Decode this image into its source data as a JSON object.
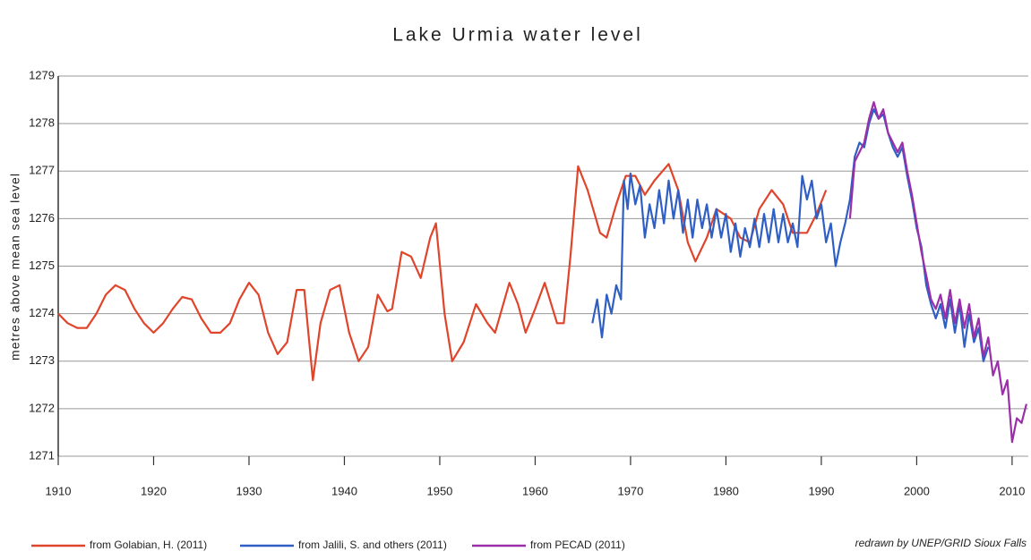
{
  "chart_data": {
    "type": "line",
    "title": "Lake Urmia water level",
    "y_label": "metres above mean sea level",
    "credit": "redrawn by UNEP/GRID Sioux Falls",
    "xlim": [
      1910,
      2011.7
    ],
    "xticks": [
      1910,
      1920,
      1930,
      1940,
      1950,
      1960,
      1970,
      1980,
      1990,
      2000,
      2010
    ],
    "ylim": [
      1271,
      1279
    ],
    "yticks": [
      1271,
      1272,
      1273,
      1274,
      1275,
      1276,
      1277,
      1278,
      1279
    ],
    "grid": true,
    "series": [
      {
        "name": "from Golabian, H. (2011)",
        "color": "#e0452b",
        "x": [
          1910,
          1911,
          1912,
          1913,
          1914,
          1915,
          1916,
          1917,
          1918,
          1919,
          1920,
          1921,
          1922,
          1923,
          1924,
          1925,
          1926,
          1927,
          1928,
          1929,
          1930,
          1931,
          1932,
          1933,
          1934,
          1935,
          1935.8,
          1936.7,
          1937.5,
          1938.5,
          1939.5,
          1940.5,
          1941.5,
          1942.5,
          1943.5,
          1944.5,
          1945,
          1946,
          1947,
          1948,
          1949,
          1949.6,
          1950.5,
          1951.3,
          1952.5,
          1953.8,
          1955,
          1955.8,
          1957.3,
          1958.2,
          1959,
          1960,
          1961,
          1962.3,
          1963,
          1963.7,
          1964.5,
          1965.5,
          1966.8,
          1967.5,
          1968.5,
          1969.5,
          1970.5,
          1971.5,
          1972.5,
          1974,
          1975,
          1976,
          1976.8,
          1978,
          1979,
          1980.5,
          1981.5,
          1982.5,
          1983.5,
          1984.8,
          1986,
          1987,
          1988.5,
          1989.5,
          1990.5
        ],
        "values": [
          1274.0,
          1273.8,
          1273.7,
          1273.7,
          1274.0,
          1274.4,
          1274.6,
          1274.5,
          1274.1,
          1273.8,
          1273.6,
          1273.8,
          1274.1,
          1274.35,
          1274.3,
          1273.9,
          1273.6,
          1273.6,
          1273.8,
          1274.3,
          1274.65,
          1274.4,
          1273.6,
          1273.15,
          1273.4,
          1274.5,
          1274.5,
          1272.6,
          1273.8,
          1274.5,
          1274.6,
          1273.6,
          1273.0,
          1273.3,
          1274.4,
          1274.05,
          1274.1,
          1275.3,
          1275.2,
          1274.75,
          1275.6,
          1275.9,
          1274.0,
          1273.0,
          1273.4,
          1274.2,
          1273.8,
          1273.6,
          1274.65,
          1274.2,
          1273.6,
          1274.1,
          1274.65,
          1273.8,
          1273.8,
          1275.2,
          1277.1,
          1276.6,
          1275.7,
          1275.6,
          1276.3,
          1276.9,
          1276.9,
          1276.5,
          1276.8,
          1277.15,
          1276.6,
          1275.5,
          1275.1,
          1275.6,
          1276.2,
          1276.0,
          1275.6,
          1275.5,
          1276.2,
          1276.6,
          1276.3,
          1275.7,
          1275.7,
          1276.1,
          1276.6
        ]
      },
      {
        "name": "from Jalili, S. and others (2011)",
        "color": "#2f5fc4",
        "x": [
          1966,
          1966.5,
          1967,
          1967.5,
          1968,
          1968.5,
          1969,
          1969.3,
          1969.7,
          1970,
          1970.5,
          1971,
          1971.5,
          1972,
          1972.5,
          1973,
          1973.5,
          1974,
          1974.5,
          1975,
          1975.5,
          1976,
          1976.5,
          1977,
          1977.5,
          1978,
          1978.5,
          1979,
          1979.5,
          1980,
          1980.5,
          1981,
          1981.5,
          1982,
          1982.5,
          1983,
          1983.5,
          1984,
          1984.5,
          1985,
          1985.5,
          1986,
          1986.5,
          1987,
          1987.5,
          1988,
          1988.5,
          1989,
          1989.5,
          1990,
          1990.5,
          1991,
          1991.5,
          1992,
          1992.5,
          1993,
          1993.5,
          1994,
          1994.5,
          1995,
          1995.5,
          1996,
          1996.5,
          1997,
          1997.5,
          1998,
          1998.5,
          1999,
          1999.5,
          2000,
          2000.5,
          2001,
          2001.5,
          2002,
          2002.5,
          2003,
          2003.5,
          2004,
          2004.5,
          2005,
          2005.5,
          2006,
          2006.5,
          2007,
          2007.5
        ],
        "values": [
          1273.8,
          1274.3,
          1273.5,
          1274.4,
          1274.0,
          1274.6,
          1274.3,
          1276.8,
          1276.2,
          1276.95,
          1276.3,
          1276.7,
          1275.6,
          1276.3,
          1275.8,
          1276.6,
          1275.9,
          1276.8,
          1276.0,
          1276.6,
          1275.7,
          1276.4,
          1275.6,
          1276.4,
          1275.8,
          1276.3,
          1275.6,
          1276.2,
          1275.6,
          1276.1,
          1275.3,
          1275.9,
          1275.2,
          1275.8,
          1275.4,
          1276.0,
          1275.4,
          1276.1,
          1275.5,
          1276.2,
          1275.5,
          1276.1,
          1275.5,
          1275.9,
          1275.4,
          1276.9,
          1276.4,
          1276.8,
          1276.0,
          1276.3,
          1275.5,
          1275.9,
          1275.0,
          1275.5,
          1275.9,
          1276.4,
          1277.3,
          1277.6,
          1277.5,
          1278.0,
          1278.3,
          1278.1,
          1278.2,
          1277.8,
          1277.5,
          1277.3,
          1277.5,
          1276.9,
          1276.4,
          1275.8,
          1275.4,
          1274.6,
          1274.2,
          1273.9,
          1274.2,
          1273.7,
          1274.3,
          1273.6,
          1274.2,
          1273.3,
          1274.0,
          1273.4,
          1273.7,
          1273.0,
          1273.3
        ]
      },
      {
        "name": "from PECAD (2011)",
        "color": "#9b2fa8",
        "x": [
          1993,
          1993.5,
          1994,
          1994.5,
          1995,
          1995.5,
          1996,
          1996.5,
          1997,
          1997.5,
          1998,
          1998.5,
          1999,
          1999.5,
          2000,
          2000.5,
          2001,
          2001.5,
          2002,
          2002.5,
          2003,
          2003.5,
          2004,
          2004.5,
          2005,
          2005.5,
          2006,
          2006.5,
          2007,
          2007.5,
          2008,
          2008.5,
          2009,
          2009.5,
          2010,
          2010.5,
          2011,
          2011.5
        ],
        "values": [
          1276.0,
          1277.2,
          1277.4,
          1277.6,
          1278.1,
          1278.45,
          1278.1,
          1278.3,
          1277.8,
          1277.6,
          1277.4,
          1277.6,
          1277.0,
          1276.5,
          1275.9,
          1275.3,
          1274.8,
          1274.3,
          1274.1,
          1274.4,
          1273.9,
          1274.5,
          1273.8,
          1274.3,
          1273.7,
          1274.2,
          1273.5,
          1273.9,
          1273.1,
          1273.5,
          1272.7,
          1273.0,
          1272.3,
          1272.6,
          1271.3,
          1271.8,
          1271.7,
          1272.1
        ]
      }
    ]
  }
}
